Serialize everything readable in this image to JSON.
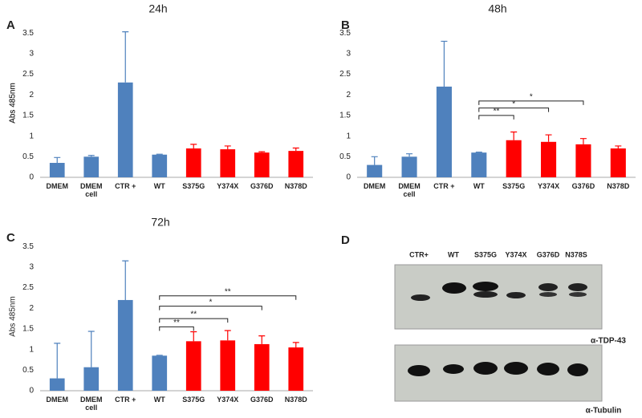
{
  "chart_data": [
    {
      "type": "bar",
      "panel_label": "A",
      "title": "24h",
      "y_label": "Abs 485nm",
      "categories": [
        "DMEM",
        "DMEM cell",
        "CTR +",
        "WT",
        "S375G",
        "Y374X",
        "G376D",
        "N378D"
      ],
      "values": [
        0.35,
        0.5,
        2.3,
        0.55,
        0.7,
        0.68,
        0.6,
        0.64
      ],
      "errors": [
        0.13,
        0.03,
        1.23,
        0.01,
        0.1,
        0.08,
        0.02,
        0.07
      ],
      "colors": [
        "#4f81bd",
        "#4f81bd",
        "#4f81bd",
        "#4f81bd",
        "#ff0000",
        "#ff0000",
        "#ff0000",
        "#ff0000"
      ],
      "ylim": [
        0,
        3.6
      ],
      "yticks": [
        0,
        0.5,
        1,
        1.5,
        2,
        2.5,
        3,
        3.5
      ]
    },
    {
      "type": "bar",
      "panel_label": "B",
      "title": "48h",
      "y_label": "Abs 485nm",
      "categories": [
        "DMEM",
        "DMEM cell",
        "CTR +",
        "WT",
        "S375G",
        "Y374X",
        "G376D",
        "N378D"
      ],
      "values": [
        0.3,
        0.5,
        2.2,
        0.6,
        0.9,
        0.86,
        0.8,
        0.7
      ],
      "errors": [
        0.2,
        0.07,
        1.1,
        0.01,
        0.2,
        0.17,
        0.14,
        0.06
      ],
      "colors": [
        "#4f81bd",
        "#4f81bd",
        "#4f81bd",
        "#4f81bd",
        "#ff0000",
        "#ff0000",
        "#ff0000",
        "#ff0000"
      ],
      "ylim": [
        0,
        3.6
      ],
      "yticks": [
        0,
        0.5,
        1,
        1.5,
        2,
        2.5,
        3,
        3.5
      ],
      "significance": {
        "labels": [
          null,
          null,
          null,
          null,
          "**",
          "*",
          "*",
          null
        ],
        "y": [
          null,
          null,
          null,
          null,
          1.5,
          1.68,
          1.85,
          null
        ]
      }
    },
    {
      "type": "bar",
      "panel_label": "C",
      "title": "72h",
      "y_label": "Abs 485nm",
      "categories": [
        "DMEM",
        "DMEM cell",
        "CTR +",
        "WT",
        "S375G",
        "Y374X",
        "G376D",
        "N378D"
      ],
      "values": [
        0.3,
        0.57,
        2.2,
        0.85,
        1.2,
        1.22,
        1.13,
        1.05
      ],
      "errors": [
        0.85,
        0.87,
        0.95,
        0.01,
        0.23,
        0.24,
        0.2,
        0.12
      ],
      "colors": [
        "#4f81bd",
        "#4f81bd",
        "#4f81bd",
        "#4f81bd",
        "#ff0000",
        "#ff0000",
        "#ff0000",
        "#ff0000"
      ],
      "ylim": [
        0,
        3.6
      ],
      "yticks": [
        0,
        0.5,
        1,
        1.5,
        2,
        2.5,
        3,
        3.5
      ],
      "significance": {
        "labels": [
          null,
          null,
          null,
          null,
          "**",
          "**",
          "*",
          "**"
        ],
        "y": [
          null,
          null,
          null,
          null,
          1.55,
          1.75,
          2.05,
          2.3
        ]
      }
    }
  ],
  "blot": {
    "panel_label": "D",
    "lanes": [
      "CTR+",
      "WT",
      "S375G",
      "Y374X",
      "G376D",
      "N378S"
    ],
    "antibodies": [
      "α-TDP-43",
      "α-Tubulin"
    ]
  }
}
